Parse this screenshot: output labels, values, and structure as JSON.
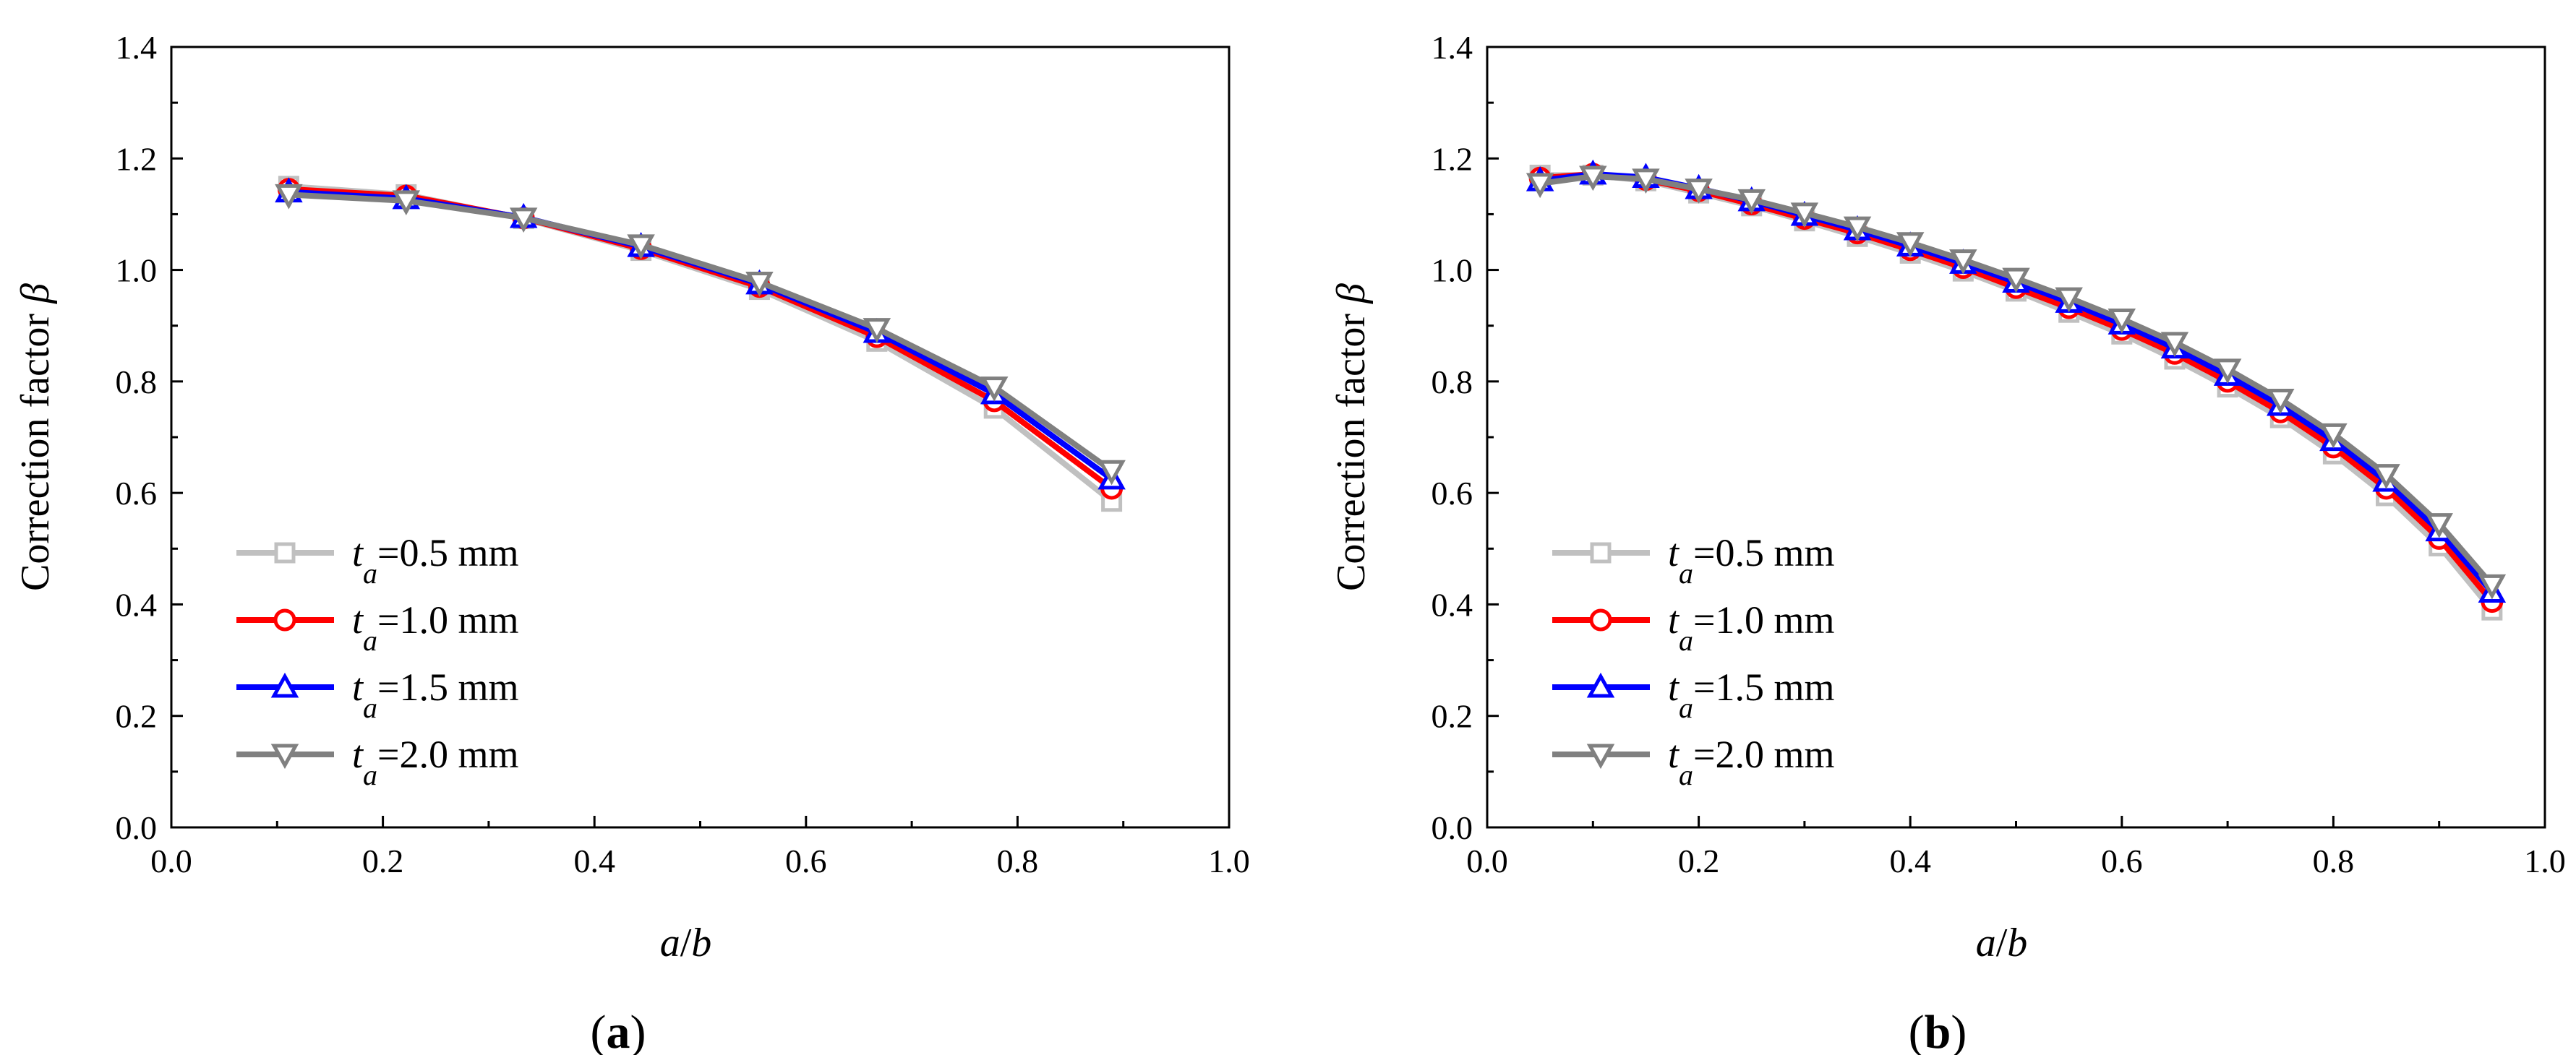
{
  "chart_data": [
    {
      "type": "line",
      "panel_label": "a",
      "xlabel_num": "a",
      "xlabel_sep": "/",
      "xlabel_den": "b",
      "ylabel_text": "Correction factor ",
      "ylabel_symbol": "β",
      "xlim": [
        0.0,
        1.0
      ],
      "ylim": [
        0.0,
        1.4
      ],
      "xticks": [
        "0.0",
        "0.2",
        "0.4",
        "0.6",
        "0.8",
        "1.0"
      ],
      "yticks": [
        "0.0",
        "0.2",
        "0.4",
        "0.6",
        "0.8",
        "1.0",
        "1.2",
        "1.4"
      ],
      "legend_position": "bottom-left",
      "x": [
        0.111,
        0.222,
        0.333,
        0.444,
        0.556,
        0.667,
        0.778,
        0.889
      ],
      "series": [
        {
          "name_prefix": "t",
          "name_sub": "a",
          "name_suffix": "=0.5 mm",
          "color": "#c0c0c0",
          "marker": "square",
          "values": [
            1.15,
            1.135,
            1.092,
            1.035,
            0.965,
            0.872,
            0.752,
            0.585
          ]
        },
        {
          "name_prefix": "t",
          "name_sub": "a",
          "name_suffix": "=1.0 mm",
          "color": "#ff0000",
          "marker": "circle",
          "values": [
            1.145,
            1.133,
            1.093,
            1.038,
            0.97,
            0.88,
            0.765,
            0.608
          ]
        },
        {
          "name_prefix": "t",
          "name_sub": "a",
          "name_suffix": "=1.5 mm",
          "color": "#0000ff",
          "marker": "triangle-up",
          "values": [
            1.14,
            1.128,
            1.094,
            1.042,
            0.975,
            0.888,
            0.778,
            0.625
          ]
        },
        {
          "name_prefix": "t",
          "name_sub": "a",
          "name_suffix": "=2.0 mm",
          "color": "#808080",
          "marker": "triangle-down",
          "values": [
            1.135,
            1.124,
            1.093,
            1.045,
            0.978,
            0.895,
            0.79,
            0.64
          ]
        }
      ]
    },
    {
      "type": "line",
      "panel_label": "b",
      "xlabel_num": "a",
      "xlabel_sep": "/",
      "xlabel_den": "b",
      "ylabel_text": "Correction factor ",
      "ylabel_symbol": "β",
      "xlim": [
        0.0,
        1.0
      ],
      "ylim": [
        0.0,
        1.4
      ],
      "xticks": [
        "0.0",
        "0.2",
        "0.4",
        "0.6",
        "0.8",
        "1.0"
      ],
      "yticks": [
        "0.0",
        "0.2",
        "0.4",
        "0.6",
        "0.8",
        "1.0",
        "1.2",
        "1.4"
      ],
      "legend_position": "bottom-left",
      "x": [
        0.05,
        0.1,
        0.15,
        0.2,
        0.25,
        0.3,
        0.35,
        0.4,
        0.45,
        0.5,
        0.55,
        0.6,
        0.65,
        0.7,
        0.75,
        0.8,
        0.85,
        0.9,
        0.95
      ],
      "series": [
        {
          "name_prefix": "t",
          "name_sub": "a",
          "name_suffix": "=0.5 mm",
          "color": "#c0c0c0",
          "marker": "square",
          "values": [
            1.17,
            1.17,
            1.16,
            1.138,
            1.115,
            1.088,
            1.06,
            1.03,
            0.998,
            0.962,
            0.924,
            0.885,
            0.84,
            0.79,
            0.735,
            0.67,
            0.595,
            0.505,
            0.39
          ]
        },
        {
          "name_prefix": "t",
          "name_sub": "a",
          "name_suffix": "=1.0 mm",
          "color": "#ff0000",
          "marker": "circle",
          "values": [
            1.165,
            1.172,
            1.162,
            1.142,
            1.118,
            1.092,
            1.066,
            1.036,
            1.004,
            0.968,
            0.932,
            0.893,
            0.85,
            0.8,
            0.745,
            0.682,
            0.608,
            0.518,
            0.405
          ]
        },
        {
          "name_prefix": "t",
          "name_sub": "a",
          "name_suffix": "=1.5 mm",
          "color": "#0000ff",
          "marker": "triangle-up",
          "values": [
            1.16,
            1.172,
            1.166,
            1.146,
            1.124,
            1.098,
            1.072,
            1.043,
            1.012,
            0.978,
            0.942,
            0.903,
            0.86,
            0.811,
            0.757,
            0.694,
            0.621,
            0.532,
            0.422
          ]
        },
        {
          "name_prefix": "t",
          "name_sub": "a",
          "name_suffix": "=2.0 mm",
          "color": "#808080",
          "marker": "triangle-down",
          "values": [
            1.155,
            1.168,
            1.163,
            1.145,
            1.126,
            1.102,
            1.077,
            1.049,
            1.018,
            0.985,
            0.95,
            0.912,
            0.87,
            0.822,
            0.768,
            0.706,
            0.633,
            0.545,
            0.435
          ]
        }
      ]
    }
  ]
}
